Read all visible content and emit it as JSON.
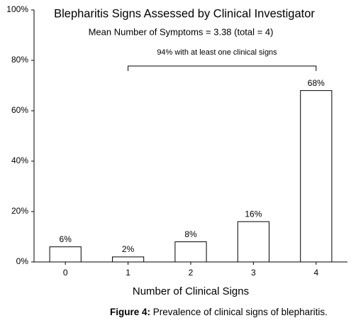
{
  "chart_data": {
    "type": "bar",
    "title": "Blepharitis Signs Assessed by Clinical Investigator",
    "subtitle": "Mean Number of Symptoms = 3.38 (total = 4)",
    "annotation": "94% with at least one clinical signs",
    "x_label": "Number of Clinical Signs",
    "caption_label": "Figure 4:",
    "caption": "Prevalence of clinical signs of blepharitis.",
    "categories": [
      "0",
      "1",
      "2",
      "3",
      "4"
    ],
    "values": [
      6,
      2,
      8,
      16,
      68
    ],
    "value_labels": [
      "6%",
      "2%",
      "8%",
      "16%",
      "68%"
    ],
    "color": "#ffffff",
    "ylim": [
      0,
      100
    ],
    "yticks": [
      {
        "value": 0,
        "label": "0%"
      },
      {
        "value": 20,
        "label": "20%"
      },
      {
        "value": 40,
        "label": "40%"
      },
      {
        "value": 60,
        "label": "60%"
      },
      {
        "value": 80,
        "label": "80%"
      },
      {
        "value": 100,
        "label": "100%"
      }
    ],
    "grid": false
  }
}
